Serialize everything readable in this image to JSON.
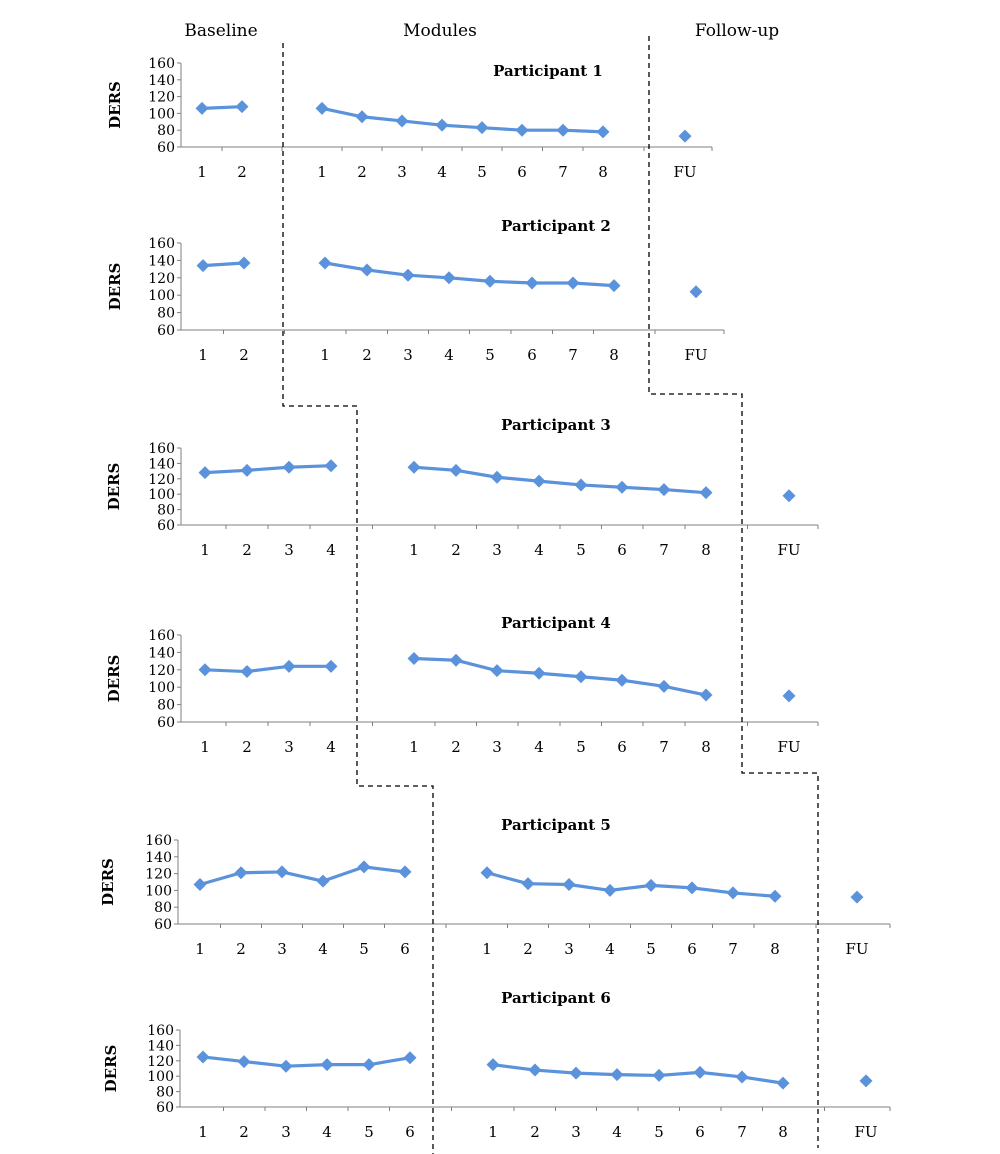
{
  "phase_labels": {
    "baseline": "Baseline",
    "modules": "Modules",
    "followup": "Follow-up"
  },
  "colors": {
    "series": "#5b92dc",
    "axis": "#7f7f7f",
    "divider": "#000000"
  },
  "chart_data": [
    {
      "type": "line",
      "title": "Participant 1",
      "ylabel": "DERS",
      "ylim": [
        60,
        160
      ],
      "yticks": [
        "60",
        "80",
        "100",
        "120",
        "140",
        "160"
      ],
      "baseline": {
        "x": [
          "1",
          "2"
        ],
        "values": [
          106,
          108
        ]
      },
      "modules": {
        "x": [
          "1",
          "2",
          "3",
          "4",
          "5",
          "6",
          "7",
          "8"
        ],
        "values": [
          106,
          96,
          91,
          86,
          83,
          80,
          80,
          78
        ]
      },
      "followup": {
        "x": [
          "FU"
        ],
        "values": [
          73
        ]
      }
    },
    {
      "type": "line",
      "title": "Participant 2",
      "ylabel": "DERS",
      "ylim": [
        60,
        160
      ],
      "yticks": [
        "60",
        "80",
        "100",
        "120",
        "140",
        "160"
      ],
      "baseline": {
        "x": [
          "1",
          "2"
        ],
        "values": [
          134,
          137
        ]
      },
      "modules": {
        "x": [
          "1",
          "2",
          "3",
          "4",
          "5",
          "6",
          "7",
          "8"
        ],
        "values": [
          137,
          129,
          123,
          120,
          116,
          114,
          114,
          111
        ]
      },
      "followup": {
        "x": [
          "FU"
        ],
        "values": [
          104
        ]
      }
    },
    {
      "type": "line",
      "title": "Participant 3",
      "ylabel": "DERS",
      "ylim": [
        60,
        160
      ],
      "yticks": [
        "60",
        "80",
        "100",
        "120",
        "140",
        "160"
      ],
      "baseline": {
        "x": [
          "1",
          "2",
          "3",
          "4"
        ],
        "values": [
          128,
          131,
          135,
          137
        ]
      },
      "modules": {
        "x": [
          "1",
          "2",
          "3",
          "4",
          "5",
          "6",
          "7",
          "8"
        ],
        "values": [
          135,
          131,
          122,
          117,
          112,
          109,
          106,
          102
        ]
      },
      "followup": {
        "x": [
          "FU"
        ],
        "values": [
          98
        ]
      }
    },
    {
      "type": "line",
      "title": "Participant 4",
      "ylabel": "DERS",
      "ylim": [
        60,
        160
      ],
      "yticks": [
        "60",
        "80",
        "100",
        "120",
        "140",
        "160"
      ],
      "baseline": {
        "x": [
          "1",
          "2",
          "3",
          "4"
        ],
        "values": [
          120,
          118,
          124,
          124
        ]
      },
      "modules": {
        "x": [
          "1",
          "2",
          "3",
          "4",
          "5",
          "6",
          "7",
          "8"
        ],
        "values": [
          133,
          131,
          119,
          116,
          112,
          108,
          101,
          91
        ]
      },
      "followup": {
        "x": [
          "FU"
        ],
        "values": [
          90
        ]
      }
    },
    {
      "type": "line",
      "title": "Participant 5",
      "ylabel": "DERS",
      "ylim": [
        60,
        160
      ],
      "yticks": [
        "60",
        "80",
        "100",
        "120",
        "140",
        "160"
      ],
      "baseline": {
        "x": [
          "1",
          "2",
          "3",
          "4",
          "5",
          "6"
        ],
        "values": [
          107,
          121,
          122,
          111,
          128,
          122
        ]
      },
      "modules": {
        "x": [
          "1",
          "2",
          "3",
          "4",
          "5",
          "6",
          "7",
          "8"
        ],
        "values": [
          121,
          108,
          107,
          100,
          106,
          103,
          97,
          93
        ]
      },
      "followup": {
        "x": [
          "FU"
        ],
        "values": [
          92
        ]
      }
    },
    {
      "type": "line",
      "title": "Participant 6",
      "ylabel": "DERS",
      "ylim": [
        60,
        160
      ],
      "yticks": [
        "60",
        "80",
        "100",
        "120",
        "140",
        "160"
      ],
      "baseline": {
        "x": [
          "1",
          "2",
          "3",
          "4",
          "5",
          "6"
        ],
        "values": [
          125,
          119,
          113,
          115,
          115,
          124
        ]
      },
      "modules": {
        "x": [
          "1",
          "2",
          "3",
          "4",
          "5",
          "6",
          "7",
          "8"
        ],
        "values": [
          115,
          108,
          104,
          102,
          101,
          105,
          99,
          91
        ]
      },
      "followup": {
        "x": [
          "FU"
        ],
        "values": [
          94
        ]
      }
    }
  ]
}
